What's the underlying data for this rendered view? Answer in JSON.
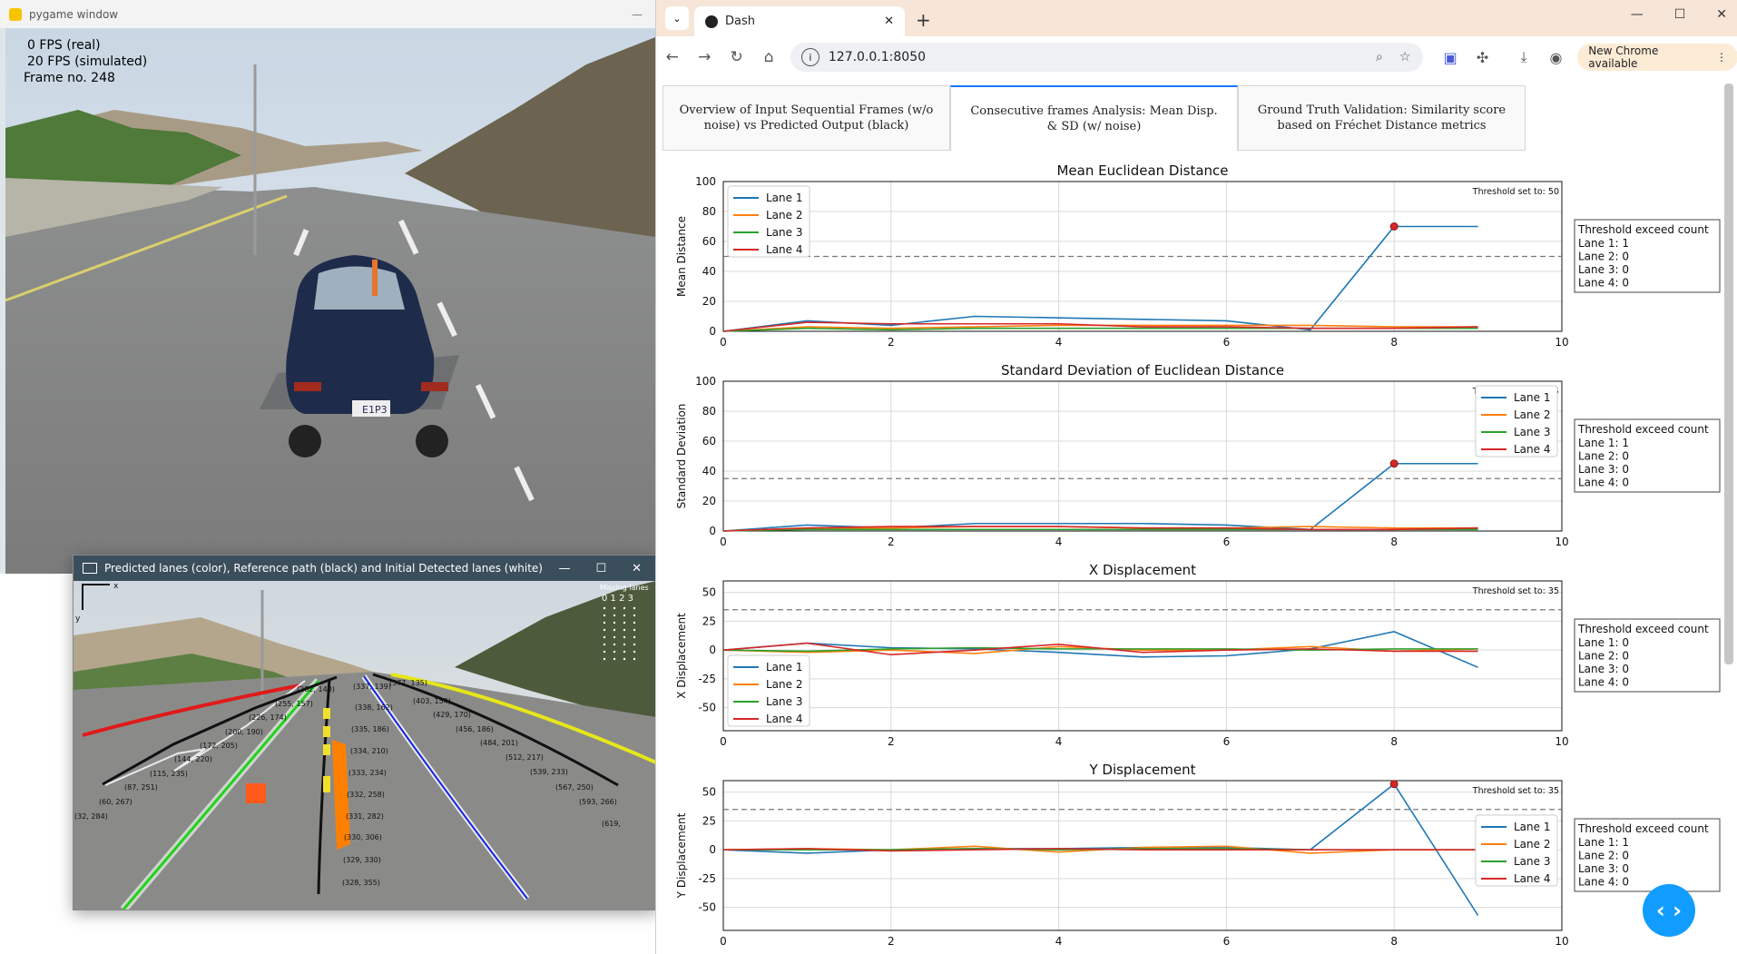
{
  "pygame_window": {
    "title": "pygame window",
    "hud": {
      "fps_real": "0 FPS (real)",
      "fps_simulated": "20 FPS (simulated)",
      "frame": "Frame no. 248"
    },
    "plate": "E1P3"
  },
  "lanes_window": {
    "title": "Predicted lanes (color), Reference path (black) and Initial Detected lanes (white)",
    "missing_lanes_title": "Missing lanes",
    "missing_lanes_cols": "0 1 2 3",
    "axis_x": "x",
    "axis_y": "y",
    "points": [
      "(282, 140)",
      "(337, 139)",
      "(377, 135)",
      "(255, 157)",
      "(338, 162)",
      "(403, 154)",
      "(226, 174)",
      "(429, 170)",
      "(200, 190)",
      "(335, 186)",
      "(456, 186)",
      "(172, 205)",
      "(334, 210)",
      "(484, 201)",
      "(144, 220)",
      "(512, 217)",
      "(115, 235)",
      "(333, 234)",
      "(539, 233)",
      "(87, 251)",
      "(567, 250)",
      "(60, 267)",
      "(332, 258)",
      "(593, 266)",
      "(32, 284)",
      "(331, 282)",
      "(619,",
      "(330, 306)",
      "(329, 330)",
      "(328, 355)"
    ]
  },
  "browser": {
    "tab_title": "Dash",
    "url": "127.0.0.1:8050",
    "update_label": "New Chrome available"
  },
  "dash_tabs": [
    "Overview of Input Sequential Frames (w/o noise) vs Predicted Output (black)",
    "Consecutive frames Analysis: Mean Disp. & SD (w/ noise)",
    "Ground Truth Validation: Similarity score based on Fréchet Distance metrics"
  ],
  "chart_data": [
    {
      "type": "line",
      "title": "Mean Euclidean Distance",
      "xlabel": "",
      "ylabel": "Mean Distance",
      "xlim": [
        0,
        10
      ],
      "ylim": [
        0,
        100
      ],
      "xticks": [
        0,
        2,
        4,
        6,
        8,
        10
      ],
      "yticks": [
        0,
        20,
        40,
        60,
        80,
        100
      ],
      "threshold": 50,
      "threshold_label": "Threshold set to: 50",
      "legend_pos": "top-left",
      "highlight": {
        "x": 8,
        "y": 70
      },
      "x": [
        0,
        1,
        2,
        3,
        4,
        5,
        6,
        7,
        8,
        9
      ],
      "series": [
        {
          "name": "Lane 1",
          "color": "#1f77b4",
          "values": [
            0,
            7,
            4,
            10,
            9,
            8,
            7,
            1,
            70,
            70
          ]
        },
        {
          "name": "Lane 2",
          "color": "#ff7f0e",
          "values": [
            0,
            3,
            2,
            3,
            4,
            4,
            4,
            4,
            3,
            3
          ]
        },
        {
          "name": "Lane 3",
          "color": "#2ca02c",
          "values": [
            0,
            2,
            1,
            2,
            2,
            2,
            2,
            2,
            2,
            2
          ]
        },
        {
          "name": "Lane 4",
          "color": "#d62728",
          "values": [
            0,
            6,
            5,
            5,
            5,
            3,
            3,
            2,
            2,
            3
          ]
        }
      ],
      "box_title": "Threshold exceed count",
      "box_lines": [
        "Lane 1: 1",
        "Lane 2: 0",
        "Lane 3: 0",
        "Lane 4: 0"
      ]
    },
    {
      "type": "line",
      "title": "Standard Deviation of Euclidean Distance",
      "xlabel": "",
      "ylabel": "Standard Deviation",
      "xlim": [
        0,
        10
      ],
      "ylim": [
        0,
        100
      ],
      "xticks": [
        0,
        2,
        4,
        6,
        8,
        10
      ],
      "yticks": [
        0,
        20,
        40,
        60,
        80,
        100
      ],
      "threshold": 35,
      "threshold_label": "Threshold set to: 35",
      "legend_pos": "top-right",
      "highlight": {
        "x": 8,
        "y": 45
      },
      "x": [
        0,
        1,
        2,
        3,
        4,
        5,
        6,
        7,
        8,
        9
      ],
      "series": [
        {
          "name": "Lane 1",
          "color": "#1f77b4",
          "values": [
            0,
            4,
            2,
            5,
            5,
            5,
            4,
            1,
            45,
            45
          ]
        },
        {
          "name": "Lane 2",
          "color": "#ff7f0e",
          "values": [
            0,
            2,
            2,
            3,
            3,
            2,
            2,
            3,
            2,
            2
          ]
        },
        {
          "name": "Lane 3",
          "color": "#2ca02c",
          "values": [
            0,
            1,
            1,
            1,
            1,
            1,
            1,
            1,
            1,
            1
          ]
        },
        {
          "name": "Lane 4",
          "color": "#d62728",
          "values": [
            0,
            2,
            3,
            3,
            3,
            2,
            2,
            1,
            1,
            2
          ]
        }
      ],
      "box_title": "Threshold exceed count",
      "box_lines": [
        "Lane 1: 1",
        "Lane 2: 0",
        "Lane 3: 0",
        "Lane 4: 0"
      ]
    },
    {
      "type": "line",
      "title": "X Displacement",
      "xlabel": "",
      "ylabel": "X Displacement",
      "xlim": [
        0,
        10
      ],
      "ylim": [
        -70,
        60
      ],
      "xticks": [
        0,
        2,
        4,
        6,
        8,
        10
      ],
      "yticks": [
        -50,
        -25,
        0,
        25,
        50
      ],
      "threshold": 35,
      "threshold_label": "Threshold set to: 35",
      "legend_pos": "bottom-left",
      "highlight": null,
      "x": [
        0,
        1,
        2,
        3,
        4,
        5,
        6,
        7,
        8,
        9
      ],
      "series": [
        {
          "name": "Lane 1",
          "color": "#1f77b4",
          "values": [
            0,
            6,
            2,
            1,
            -2,
            -6,
            -5,
            1,
            16,
            -15
          ]
        },
        {
          "name": "Lane 2",
          "color": "#ff7f0e",
          "values": [
            0,
            -2,
            0,
            -3,
            3,
            0,
            0,
            3,
            -1,
            1
          ]
        },
        {
          "name": "Lane 3",
          "color": "#2ca02c",
          "values": [
            0,
            -1,
            1,
            2,
            1,
            1,
            1,
            0,
            1,
            1
          ]
        },
        {
          "name": "Lane 4",
          "color": "#d62728",
          "values": [
            0,
            6,
            -4,
            0,
            5,
            -2,
            0,
            1,
            -1,
            -1
          ]
        }
      ],
      "box_title": "Threshold exceed count",
      "box_lines": [
        "Lane 1: 0",
        "Lane 2: 0",
        "Lane 3: 0",
        "Lane 4: 0"
      ]
    },
    {
      "type": "line",
      "title": "Y Displacement",
      "xlabel": "",
      "ylabel": "Y Displacement",
      "xlim": [
        0,
        10
      ],
      "ylim": [
        -70,
        60
      ],
      "xticks": [
        0,
        2,
        4,
        6,
        8,
        10
      ],
      "yticks": [
        -50,
        -25,
        0,
        25,
        50
      ],
      "threshold": 35,
      "threshold_label": "Threshold set to: 35",
      "legend_pos": "top-right",
      "highlight": {
        "x": 8,
        "y": 57
      },
      "x": [
        0,
        1,
        2,
        3,
        4,
        5,
        6,
        7,
        8,
        9
      ],
      "series": [
        {
          "name": "Lane 1",
          "color": "#1f77b4",
          "values": [
            0,
            -3,
            0,
            1,
            1,
            2,
            2,
            0,
            57,
            -57
          ]
        },
        {
          "name": "Lane 2",
          "color": "#ff7f0e",
          "values": [
            0,
            1,
            0,
            3,
            -2,
            2,
            3,
            -3,
            0,
            0
          ]
        },
        {
          "name": "Lane 3",
          "color": "#2ca02c",
          "values": [
            0,
            0,
            0,
            1,
            0,
            1,
            1,
            0,
            0,
            0
          ]
        },
        {
          "name": "Lane 4",
          "color": "#d62728",
          "values": [
            0,
            1,
            -1,
            0,
            1,
            0,
            0,
            0,
            0,
            0
          ]
        }
      ],
      "box_title": "Threshold exceed count",
      "box_lines": [
        "Lane 1: 1",
        "Lane 2: 0",
        "Lane 3: 0",
        "Lane 4: 0"
      ]
    }
  ]
}
